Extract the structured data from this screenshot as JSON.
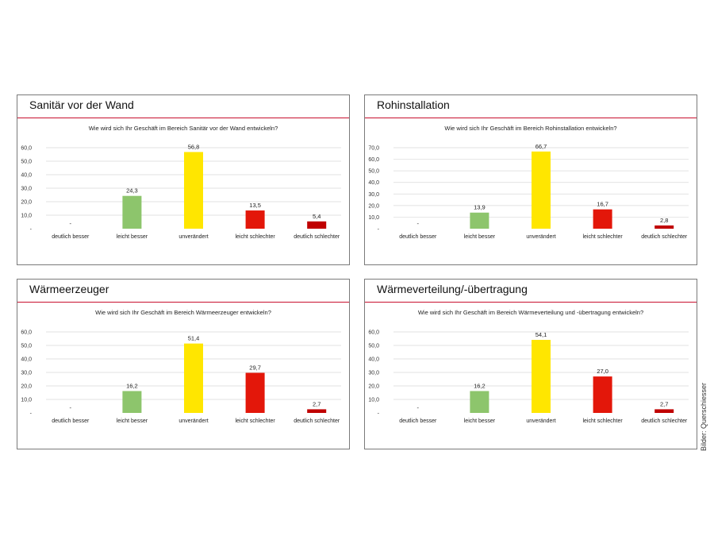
{
  "panels": [
    {
      "title": "Sanitär vor der Wand",
      "question": "Wie wird sich Ihr Geschäft im Bereich Sanitär vor der Wand entwickeln?",
      "ymax_label_note": "",
      "y_ticks": [
        "-",
        "10,0",
        "20,0",
        "30,0",
        "40,0",
        "50,0",
        "60,0"
      ]
    },
    {
      "title": "Rohinstallation",
      "question": "Wie wird sich Ihr Geschäft im Bereich Rohinstallation entwickeln?",
      "ymax_label_note": "",
      "y_ticks": [
        "-",
        "10,0",
        "20,0",
        "30,0",
        "40,0",
        "50,0",
        "60,0",
        "70,0"
      ]
    },
    {
      "title": "Wärmeerzeuger",
      "question": "Wie wird sich Ihr Geschäft im Bereich Wärmeerzeuger entwickeln?",
      "ymax_label_note": "",
      "y_ticks": [
        "-",
        "10,0",
        "20,0",
        "30,0",
        "40,0",
        "50,0",
        "60,0"
      ]
    },
    {
      "title": "Wärmeverteilung/-übertragung",
      "question": "Wie wird sich Ihr Geschäft im Bereich Wärmeverteilung und -übertragung entwickeln?",
      "ymax_label_note": "",
      "y_ticks": [
        "-",
        "10,0",
        "20,0",
        "30,0",
        "40,0",
        "50,0",
        "60,0"
      ]
    }
  ],
  "colors": {
    "accent_line": "#c8102e",
    "bars": [
      "#c00000",
      "#8dc56c",
      "#ffe600",
      "#e3170a",
      "#c00000"
    ],
    "gridline": "#d9d9d9"
  },
  "credit": "Bilder: Querschiesser",
  "chart_data": [
    {
      "type": "bar",
      "title": "Wie wird sich Ihr Geschäft im Bereich Sanitär vor der Wand entwickeln?",
      "categories": [
        "deutlich besser",
        "leicht besser",
        "unverändert",
        "leicht schlechter",
        "deutlich schlechter"
      ],
      "values": [
        0,
        24.3,
        56.8,
        13.5,
        5.4
      ],
      "value_labels": [
        "-",
        "24,3",
        "56,8",
        "13,5",
        "5,4"
      ],
      "ylim": [
        0,
        60
      ],
      "grid": true,
      "xlabel": "",
      "ylabel": ""
    },
    {
      "type": "bar",
      "title": "Wie wird sich Ihr Geschäft im Bereich Rohinstallation entwickeln?",
      "categories": [
        "deutlich besser",
        "leicht besser",
        "unverändert",
        "leicht schlechter",
        "deutlich schlechter"
      ],
      "values": [
        0,
        13.9,
        66.7,
        16.7,
        2.8
      ],
      "value_labels": [
        "-",
        "13,9",
        "66,7",
        "16,7",
        "2,8"
      ],
      "ylim": [
        0,
        70
      ],
      "grid": true,
      "xlabel": "",
      "ylabel": ""
    },
    {
      "type": "bar",
      "title": "Wie wird sich Ihr Geschäft im Bereich Wärmeerzeuger entwickeln?",
      "categories": [
        "deutlich besser",
        "leicht besser",
        "unverändert",
        "leicht schlechter",
        "deutlich schlechter"
      ],
      "values": [
        0,
        16.2,
        51.4,
        29.7,
        2.7
      ],
      "value_labels": [
        "-",
        "16,2",
        "51,4",
        "29,7",
        "2,7"
      ],
      "ylim": [
        0,
        60
      ],
      "grid": true,
      "xlabel": "",
      "ylabel": ""
    },
    {
      "type": "bar",
      "title": "Wie wird sich Ihr Geschäft im Bereich Wärmeverteilung und -übertragung entwickeln?",
      "categories": [
        "deutlich besser",
        "leicht besser",
        "unverändert",
        "leicht schlechter",
        "deutlich schlechter"
      ],
      "values": [
        0,
        16.2,
        54.1,
        27.0,
        2.7
      ],
      "value_labels": [
        "-",
        "16,2",
        "54,1",
        "27,0",
        "2,7"
      ],
      "ylim": [
        0,
        60
      ],
      "grid": true,
      "xlabel": "",
      "ylabel": ""
    }
  ]
}
